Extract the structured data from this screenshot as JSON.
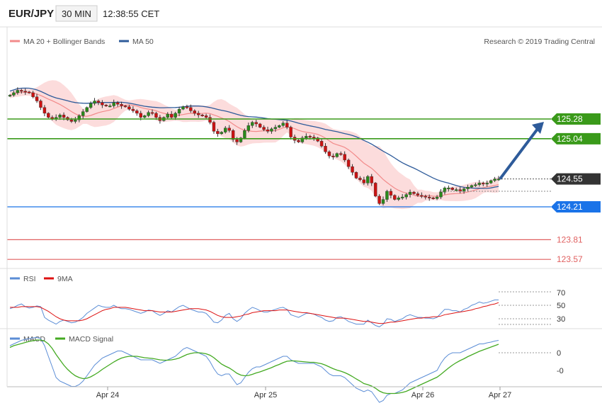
{
  "header": {
    "symbol": "EUR/JPY",
    "timeframe": "30 MIN",
    "time": "12:38:55 CET"
  },
  "legend_main": [
    {
      "name": "MA 20 + Bollinger Bands",
      "color": "#f28b8b"
    },
    {
      "name": "MA 50",
      "color": "#2e5b9a"
    }
  ],
  "copyright": "Research © 2019 Trading Central",
  "levels": [
    {
      "value": "125.28",
      "kind": "resistance",
      "color": "#3a9a1a"
    },
    {
      "value": "125.04",
      "kind": "resistance",
      "color": "#3a9a1a"
    },
    {
      "value": "124.55",
      "kind": "current",
      "color": "#333333"
    },
    {
      "value": "124.21",
      "kind": "pivot",
      "color": "#1a73e8"
    },
    {
      "value": "123.81",
      "kind": "support",
      "color": "#e06060"
    },
    {
      "value": "123.57",
      "kind": "support",
      "color": "#e06060"
    }
  ],
  "legend_rsi": [
    {
      "name": "RSI",
      "color": "#5b8dd6"
    },
    {
      "name": "9MA",
      "color": "#dd1111"
    }
  ],
  "rsi_ticks": [
    "70",
    "50",
    "30"
  ],
  "legend_macd": [
    {
      "name": "MACD",
      "color": "#5b8dd6"
    },
    {
      "name": "MACD Signal",
      "color": "#44aa22"
    }
  ],
  "macd_ticks": [
    "0",
    "-0"
  ],
  "x_labels": [
    "Apr 24",
    "Apr 25",
    "Apr 26",
    "Apr 27"
  ],
  "chart_data": {
    "type": "candlestick",
    "y_range_main": [
      123.5,
      125.9
    ],
    "current_price": 124.55,
    "closes": [
      125.57,
      125.6,
      125.63,
      125.62,
      125.61,
      125.6,
      125.55,
      125.5,
      125.42,
      125.35,
      125.3,
      125.28,
      125.3,
      125.33,
      125.3,
      125.27,
      125.25,
      125.27,
      125.32,
      125.37,
      125.42,
      125.47,
      125.5,
      125.48,
      125.45,
      125.44,
      125.44,
      125.48,
      125.46,
      125.44,
      125.43,
      125.4,
      125.38,
      125.35,
      125.3,
      125.32,
      125.36,
      125.35,
      125.3,
      125.26,
      125.3,
      125.34,
      125.3,
      125.35,
      125.4,
      125.43,
      125.42,
      125.38,
      125.35,
      125.33,
      125.32,
      125.3,
      125.24,
      125.13,
      125.1,
      125.12,
      125.17,
      125.14,
      125.03,
      125.0,
      125.05,
      125.14,
      125.2,
      125.24,
      125.22,
      125.18,
      125.15,
      125.13,
      125.16,
      125.18,
      125.2,
      125.23,
      125.18,
      125.06,
      125.02,
      125.0,
      125.05,
      125.07,
      125.06,
      125.05,
      125.01,
      124.95,
      124.88,
      124.83,
      124.82,
      124.86,
      124.85,
      124.78,
      124.7,
      124.63,
      124.56,
      124.54,
      124.5,
      124.58,
      124.5,
      124.34,
      124.25,
      124.3,
      124.4,
      124.35,
      124.3,
      124.32,
      124.33,
      124.36,
      124.39,
      124.37,
      124.35,
      124.34,
      124.33,
      124.32,
      124.31,
      124.33,
      124.39,
      124.44,
      124.44,
      124.42,
      124.42,
      124.4,
      124.43,
      124.45,
      124.47,
      124.48,
      124.5,
      124.49,
      124.5,
      124.53,
      124.55,
      124.55
    ],
    "rsi": {
      "range": [
        10,
        90
      ],
      "series": {
        "RSI": [
          45,
          47,
          50,
          52,
          48,
          46,
          47,
          49,
          48,
          32,
          28,
          25,
          22,
          26,
          28,
          26,
          24,
          25,
          28,
          32,
          38,
          42,
          46,
          50,
          48,
          47,
          47,
          50,
          47,
          45,
          45,
          44,
          42,
          40,
          38,
          40,
          43,
          42,
          38,
          35,
          38,
          42,
          40,
          44,
          48,
          50,
          47,
          44,
          42,
          40,
          40,
          38,
          32,
          25,
          24,
          28,
          35,
          38,
          30,
          26,
          30,
          38,
          43,
          47,
          45,
          42,
          40,
          40,
          42,
          44,
          46,
          47,
          44,
          36,
          34,
          32,
          35,
          38,
          38,
          37,
          34,
          32,
          28,
          26,
          27,
          32,
          33,
          30,
          26,
          24,
          22,
          22,
          22,
          28,
          24,
          20,
          18,
          22,
          30,
          29,
          26,
          28,
          30,
          34,
          36,
          34,
          32,
          32,
          31,
          31,
          30,
          32,
          38,
          44,
          44,
          42,
          42,
          40,
          44,
          46,
          50,
          52,
          55,
          53,
          54,
          56,
          58,
          58
        ],
        "9MA": [
          47,
          47,
          47,
          48,
          48,
          48,
          48,
          48,
          47,
          44,
          41,
          37,
          33,
          30,
          28,
          27,
          27,
          27,
          27,
          28,
          30,
          33,
          36,
          39,
          42,
          44,
          45,
          47,
          47,
          47,
          47,
          46,
          45,
          44,
          43,
          42,
          42,
          42,
          41,
          40,
          40,
          40,
          40,
          41,
          42,
          43,
          44,
          45,
          45,
          45,
          44,
          43,
          41,
          38,
          35,
          33,
          32,
          32,
          32,
          33,
          34,
          36,
          37,
          39,
          40,
          41,
          42,
          42,
          42,
          42,
          43,
          43,
          43,
          42,
          41,
          40,
          39,
          39,
          38,
          37,
          36,
          35,
          34,
          33,
          32,
          31,
          31,
          31,
          30,
          29,
          28,
          27,
          26,
          26,
          25,
          24,
          23,
          23,
          24,
          25,
          25,
          26,
          27,
          28,
          29,
          30,
          31,
          31,
          32,
          32,
          33,
          33,
          34,
          36,
          37,
          38,
          39,
          40,
          41,
          42,
          43,
          45,
          46,
          48,
          49,
          51,
          52,
          54
        ]
      }
    },
    "macd": {
      "range": [
        -0.16,
        0.12
      ],
      "series": {
        "MACD": [
          0.02,
          0.025,
          0.03,
          0.035,
          0.038,
          0.04,
          0.042,
          0.043,
          0.04,
          0.02,
          -0.01,
          -0.04,
          -0.07,
          -0.08,
          -0.085,
          -0.09,
          -0.095,
          -0.095,
          -0.09,
          -0.08,
          -0.065,
          -0.05,
          -0.035,
          -0.025,
          -0.015,
          -0.01,
          -0.005,
          0.0,
          0.005,
          0.005,
          0.0,
          -0.005,
          -0.01,
          -0.015,
          -0.02,
          -0.02,
          -0.02,
          -0.02,
          -0.025,
          -0.03,
          -0.025,
          -0.02,
          -0.015,
          -0.01,
          0.0,
          0.01,
          0.015,
          0.01,
          0.005,
          0.0,
          -0.005,
          -0.01,
          -0.025,
          -0.045,
          -0.06,
          -0.065,
          -0.06,
          -0.06,
          -0.075,
          -0.09,
          -0.085,
          -0.07,
          -0.055,
          -0.045,
          -0.04,
          -0.04,
          -0.035,
          -0.03,
          -0.025,
          -0.02,
          -0.015,
          -0.01,
          -0.01,
          -0.02,
          -0.025,
          -0.03,
          -0.03,
          -0.03,
          -0.03,
          -0.03,
          -0.035,
          -0.04,
          -0.05,
          -0.06,
          -0.065,
          -0.065,
          -0.065,
          -0.07,
          -0.08,
          -0.09,
          -0.1,
          -0.105,
          -0.11,
          -0.105,
          -0.11,
          -0.125,
          -0.14,
          -0.135,
          -0.12,
          -0.115,
          -0.115,
          -0.11,
          -0.105,
          -0.095,
          -0.085,
          -0.08,
          -0.075,
          -0.07,
          -0.065,
          -0.06,
          -0.055,
          -0.05,
          -0.03,
          -0.015,
          -0.005,
          0.0,
          0.0,
          0.0,
          0.005,
          0.01,
          0.015,
          0.02,
          0.025,
          0.025,
          0.028,
          0.03,
          0.033,
          0.035
        ],
        "MACD Signal": [
          0.015,
          0.02,
          0.023,
          0.026,
          0.029,
          0.032,
          0.034,
          0.036,
          0.036,
          0.033,
          0.025,
          0.012,
          -0.005,
          -0.02,
          -0.035,
          -0.047,
          -0.057,
          -0.065,
          -0.07,
          -0.073,
          -0.072,
          -0.068,
          -0.062,
          -0.055,
          -0.047,
          -0.04,
          -0.033,
          -0.026,
          -0.02,
          -0.015,
          -0.012,
          -0.01,
          -0.01,
          -0.01,
          -0.012,
          -0.014,
          -0.015,
          -0.016,
          -0.018,
          -0.02,
          -0.021,
          -0.021,
          -0.02,
          -0.018,
          -0.015,
          -0.01,
          -0.005,
          -0.002,
          0.0,
          0.0,
          -0.001,
          -0.003,
          -0.007,
          -0.014,
          -0.023,
          -0.032,
          -0.038,
          -0.043,
          -0.05,
          -0.058,
          -0.063,
          -0.065,
          -0.064,
          -0.061,
          -0.057,
          -0.054,
          -0.05,
          -0.046,
          -0.042,
          -0.037,
          -0.033,
          -0.028,
          -0.024,
          -0.023,
          -0.023,
          -0.024,
          -0.025,
          -0.026,
          -0.027,
          -0.027,
          -0.029,
          -0.031,
          -0.035,
          -0.04,
          -0.045,
          -0.049,
          -0.052,
          -0.056,
          -0.061,
          -0.067,
          -0.074,
          -0.08,
          -0.087,
          -0.09,
          -0.094,
          -0.1,
          -0.108,
          -0.113,
          -0.115,
          -0.115,
          -0.115,
          -0.114,
          -0.112,
          -0.109,
          -0.104,
          -0.099,
          -0.094,
          -0.089,
          -0.084,
          -0.079,
          -0.074,
          -0.069,
          -0.061,
          -0.052,
          -0.043,
          -0.035,
          -0.028,
          -0.022,
          -0.017,
          -0.011,
          -0.006,
          -0.001,
          0.004,
          0.008,
          0.012,
          0.016,
          0.02,
          0.024
        ]
      }
    },
    "forecast_target": 125.28,
    "bollinger_width_note": ""
  }
}
